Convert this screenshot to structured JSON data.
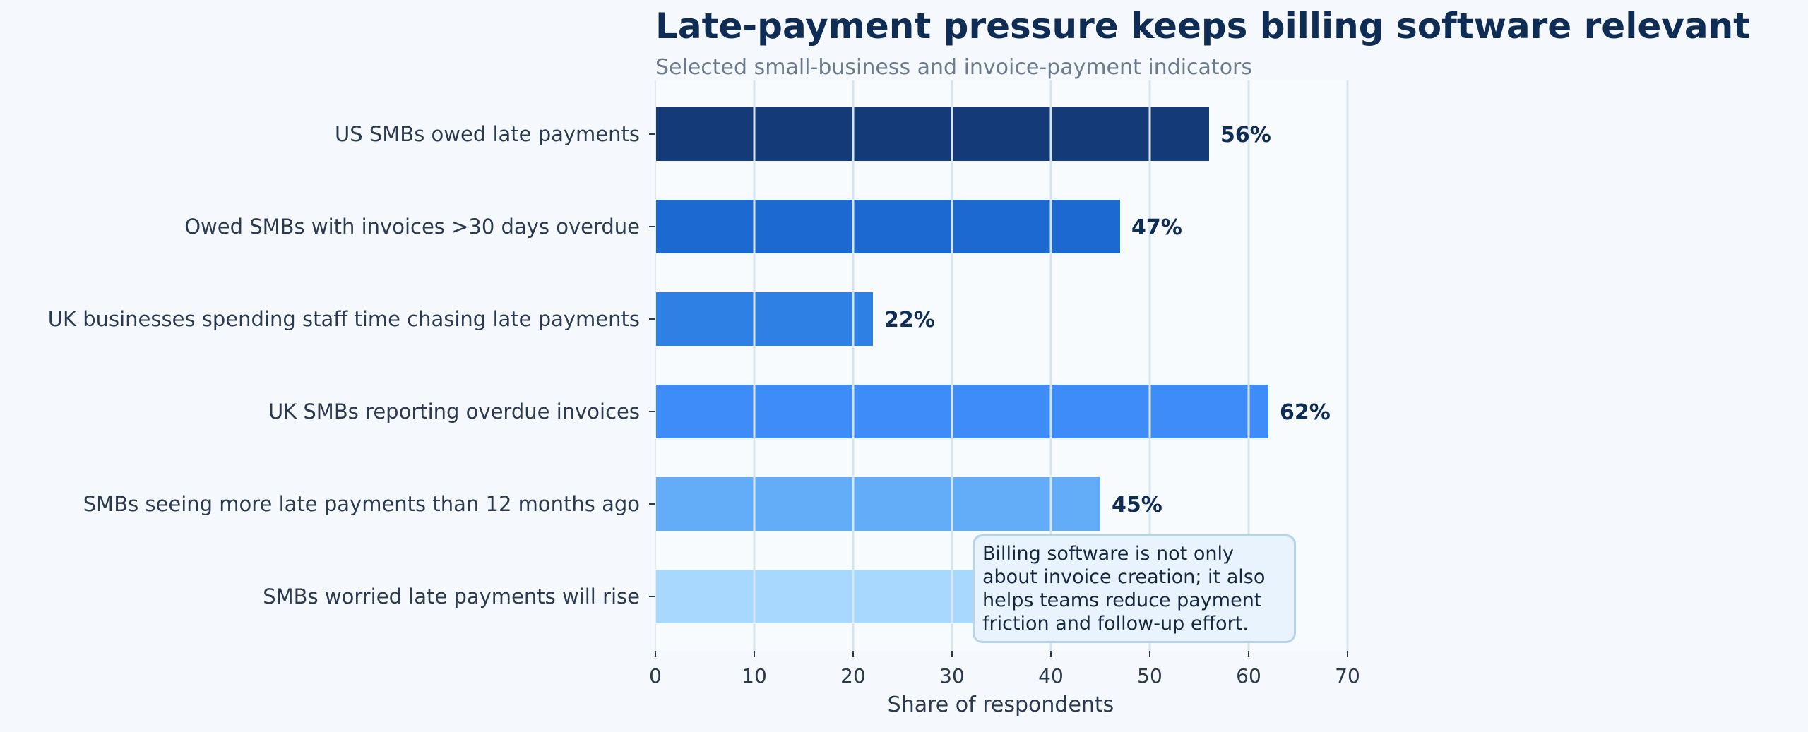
{
  "title": "Late-payment pressure keeps billing software relevant",
  "subtitle": "Selected small-business and invoice-payment indicators",
  "annotation": {
    "lines": [
      "Billing software is not only",
      "about invoice creation; it also",
      "helps teams reduce payment",
      "friction and follow-up effort."
    ]
  },
  "chart_data": {
    "type": "bar",
    "orientation": "horizontal",
    "title": "Late-payment pressure keeps billing software relevant",
    "subtitle": "Selected small-business and invoice-payment indicators",
    "xlabel": "Share of respondents",
    "ylabel": "",
    "xlim": [
      0,
      70
    ],
    "xticks": [
      0,
      10,
      20,
      30,
      40,
      50,
      60,
      70
    ],
    "grid": "vertical",
    "legend": "none",
    "value_suffix": "%",
    "categories": [
      "US SMBs owed late payments",
      "Owed SMBs with invoices >30 days overdue",
      "UK businesses spending staff time chasing late payments",
      "UK SMBs reporting overdue invoices",
      "SMBs seeing more late payments than 12 months ago",
      "SMBs worried late payments will rise"
    ],
    "values": [
      56,
      47,
      22,
      62,
      45,
      33
    ],
    "value_labels_shown": [
      true,
      true,
      true,
      true,
      true,
      false
    ],
    "colors": [
      "#143b78",
      "#1b69d1",
      "#2f80e4",
      "#3d8cf8",
      "#63acf7",
      "#a8d8fd"
    ],
    "text_color": "#0f2c55",
    "tick_color": "#2b3a4e",
    "grid_color": "#d7e6ee"
  }
}
